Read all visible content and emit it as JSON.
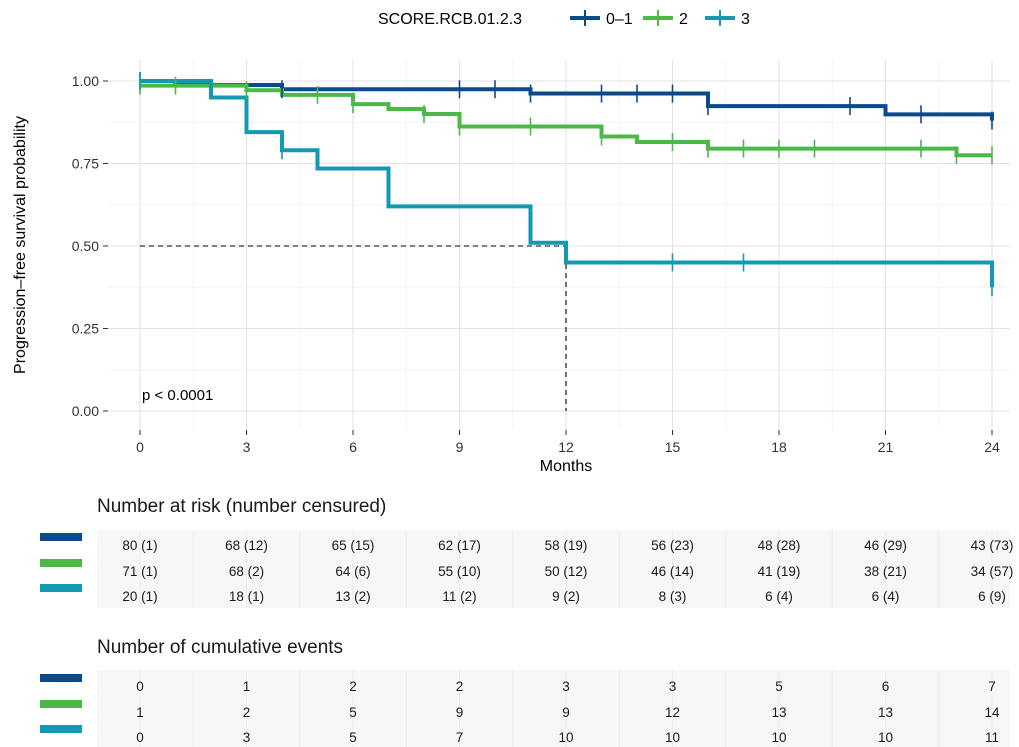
{
  "chart_data": {
    "type": "line",
    "subtype": "kaplan-meier step plot",
    "legend": {
      "title": "SCORE.RCB.01.2.3",
      "position": "top",
      "entries": [
        "0–1",
        "2",
        "3"
      ]
    },
    "xlabel": "Months",
    "ylabel": "Progression–free survival probability",
    "x_ticks": [
      "0",
      "3",
      "6",
      "9",
      "12",
      "15",
      "18",
      "21",
      "24"
    ],
    "y_ticks": [
      "0.00",
      "0.25",
      "0.50",
      "0.75",
      "1.00"
    ],
    "xlim": [
      0,
      24
    ],
    "ylim": [
      0,
      1
    ],
    "grid": true,
    "annotation": "p < 0.0001",
    "median_marker": {
      "x": 12,
      "y": 0.5
    },
    "colors": {
      "0–1": "#0b4a8b",
      "2": "#4cb848",
      "3": "#1499b3"
    },
    "series": [
      {
        "name": "0–1",
        "steps": [
          [
            0,
            1.0
          ],
          [
            1,
            0.988
          ],
          [
            4,
            0.975
          ],
          [
            11,
            0.962
          ],
          [
            16,
            0.924
          ],
          [
            21,
            0.899
          ],
          [
            24,
            0.88
          ]
        ],
        "censor_times": [
          0,
          4,
          9,
          10,
          11,
          13,
          14,
          15,
          16,
          20,
          22,
          24
        ]
      },
      {
        "name": "2",
        "steps": [
          [
            0,
            0.986
          ],
          [
            3,
            0.972
          ],
          [
            4,
            0.958
          ],
          [
            6,
            0.93
          ],
          [
            7,
            0.915
          ],
          [
            8,
            0.9
          ],
          [
            9,
            0.862
          ],
          [
            13,
            0.832
          ],
          [
            14,
            0.815
          ],
          [
            16,
            0.795
          ],
          [
            23,
            0.775
          ],
          [
            24,
            0.775
          ]
        ],
        "censor_times": [
          0,
          1,
          3,
          5,
          6,
          8,
          9,
          11,
          13,
          15,
          16,
          17,
          18,
          19,
          22,
          23,
          24
        ]
      },
      {
        "name": "3",
        "steps": [
          [
            0,
            1.0
          ],
          [
            2,
            0.95
          ],
          [
            3,
            0.845
          ],
          [
            4,
            0.79
          ],
          [
            5,
            0.735
          ],
          [
            7,
            0.62
          ],
          [
            11,
            0.51
          ],
          [
            12,
            0.45
          ],
          [
            24,
            0.375
          ]
        ],
        "censor_times": [
          0,
          4,
          15,
          17,
          24
        ]
      }
    ]
  },
  "risk_table": {
    "title": "Number at risk (number censured)",
    "rows": [
      {
        "group": "0–1",
        "cells": [
          "80 (1)",
          "68 (12)",
          "65 (15)",
          "62 (17)",
          "58 (19)",
          "56 (23)",
          "48 (28)",
          "46 (29)",
          "43 (73)"
        ]
      },
      {
        "group": "2",
        "cells": [
          "71 (1)",
          "68 (2)",
          "64 (6)",
          "55 (10)",
          "50 (12)",
          "46 (14)",
          "41 (19)",
          "38 (21)",
          "34 (57)"
        ]
      },
      {
        "group": "3",
        "cells": [
          "20 (1)",
          "18 (1)",
          "13 (2)",
          "11 (2)",
          "9 (2)",
          "8 (3)",
          "6 (4)",
          "6 (4)",
          "6 (9)"
        ]
      }
    ]
  },
  "events_table": {
    "title": "Number of cumulative events",
    "rows": [
      {
        "group": "0–1",
        "cells": [
          "0",
          "1",
          "2",
          "2",
          "3",
          "3",
          "5",
          "6",
          "7"
        ]
      },
      {
        "group": "2",
        "cells": [
          "1",
          "2",
          "5",
          "9",
          "9",
          "12",
          "13",
          "13",
          "14"
        ]
      },
      {
        "group": "3",
        "cells": [
          "0",
          "3",
          "5",
          "7",
          "10",
          "10",
          "10",
          "10",
          "11"
        ]
      }
    ]
  }
}
